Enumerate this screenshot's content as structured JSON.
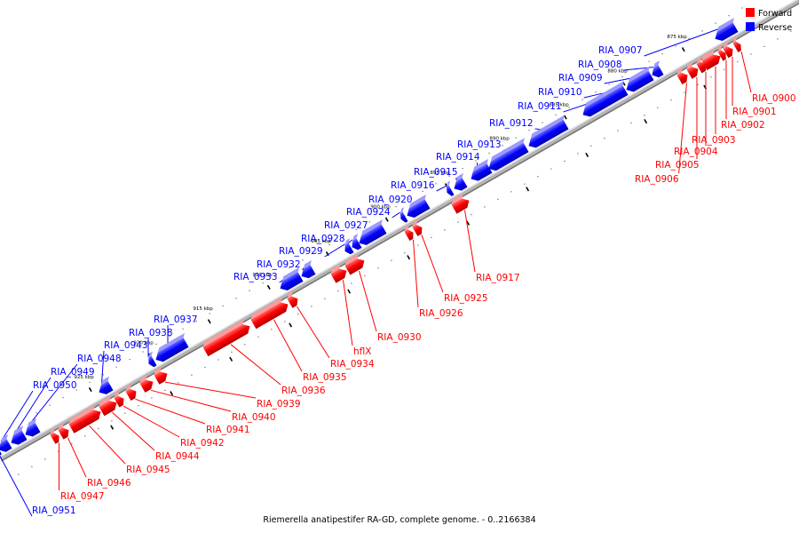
{
  "caption": "Riemerella anatipestifer RA-GD, complete genome. - 0..2166384",
  "legend": [
    {
      "label": "Forward",
      "color": "#ff0000"
    },
    {
      "label": "Reverse",
      "color": "#0000ff"
    }
  ],
  "colors": {
    "forward": "#ff0000",
    "reverse": "#0000ff",
    "backbone": "#aaaaaa"
  },
  "kbp_ticks": [
    "875 kbp",
    "880 kbp",
    "885 kbp",
    "890 kbp",
    "895 kbp",
    "900 kbp",
    "905 kbp",
    "910 kbp",
    "915 kbp",
    "920 kbp",
    "925 kbp"
  ],
  "genes": [
    {
      "id": "RIA_0900",
      "strand": "forward"
    },
    {
      "id": "RIA_0901",
      "strand": "forward"
    },
    {
      "id": "RIA_0902",
      "strand": "forward"
    },
    {
      "id": "RIA_0903",
      "strand": "forward"
    },
    {
      "id": "RIA_0904",
      "strand": "forward"
    },
    {
      "id": "RIA_0905",
      "strand": "forward"
    },
    {
      "id": "RIA_0906",
      "strand": "forward"
    },
    {
      "id": "RIA_0907",
      "strand": "reverse"
    },
    {
      "id": "RIA_0908",
      "strand": "reverse"
    },
    {
      "id": "RIA_0909",
      "strand": "reverse"
    },
    {
      "id": "RIA_0910",
      "strand": "reverse"
    },
    {
      "id": "RIA_0911",
      "strand": "reverse"
    },
    {
      "id": "RIA_0912",
      "strand": "reverse"
    },
    {
      "id": "RIA_0913",
      "strand": "reverse"
    },
    {
      "id": "RIA_0914",
      "strand": "reverse"
    },
    {
      "id": "RIA_0915",
      "strand": "reverse"
    },
    {
      "id": "RIA_0916",
      "strand": "reverse"
    },
    {
      "id": "RIA_0917",
      "strand": "forward"
    },
    {
      "id": "RIA_0920",
      "strand": "reverse"
    },
    {
      "id": "RIA_0924",
      "strand": "reverse"
    },
    {
      "id": "RIA_0925",
      "strand": "forward"
    },
    {
      "id": "RIA_0926",
      "strand": "forward"
    },
    {
      "id": "RIA_0927",
      "strand": "reverse"
    },
    {
      "id": "RIA_0928",
      "strand": "reverse"
    },
    {
      "id": "RIA_0929",
      "strand": "reverse"
    },
    {
      "id": "RIA_0930",
      "strand": "forward"
    },
    {
      "id": "hflX",
      "strand": "forward"
    },
    {
      "id": "RIA_0932",
      "strand": "reverse"
    },
    {
      "id": "RIA_0933",
      "strand": "reverse"
    },
    {
      "id": "RIA_0934",
      "strand": "forward"
    },
    {
      "id": "RIA_0935",
      "strand": "forward"
    },
    {
      "id": "RIA_0936",
      "strand": "forward"
    },
    {
      "id": "RIA_0937",
      "strand": "reverse"
    },
    {
      "id": "RIA_0938",
      "strand": "reverse"
    },
    {
      "id": "RIA_0939",
      "strand": "forward"
    },
    {
      "id": "RIA_0940",
      "strand": "forward"
    },
    {
      "id": "RIA_0941",
      "strand": "forward"
    },
    {
      "id": "RIA_0942",
      "strand": "forward"
    },
    {
      "id": "RIA_0943",
      "strand": "reverse"
    },
    {
      "id": "RIA_0944",
      "strand": "forward"
    },
    {
      "id": "RIA_0945",
      "strand": "forward"
    },
    {
      "id": "RIA_0946",
      "strand": "forward"
    },
    {
      "id": "RIA_0947",
      "strand": "forward"
    },
    {
      "id": "RIA_0948",
      "strand": "reverse"
    },
    {
      "id": "RIA_0949",
      "strand": "reverse"
    },
    {
      "id": "RIA_0950",
      "strand": "reverse"
    },
    {
      "id": "RIA_0951",
      "strand": "reverse"
    }
  ]
}
